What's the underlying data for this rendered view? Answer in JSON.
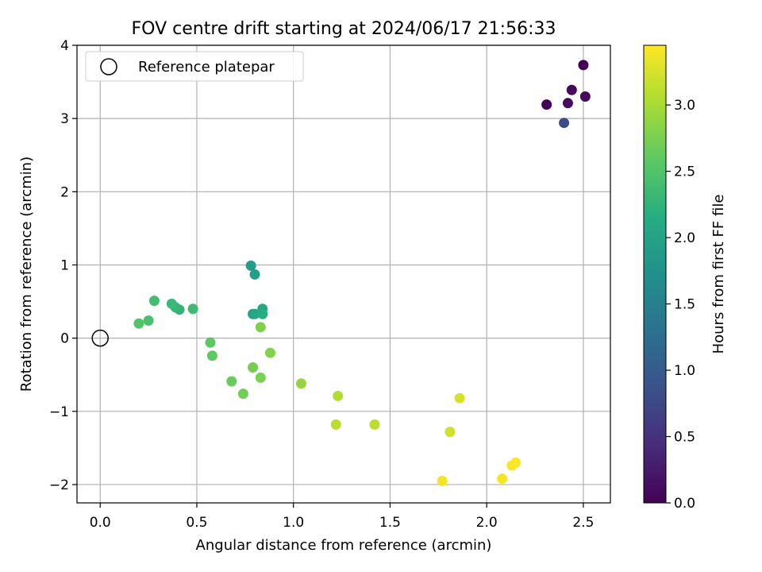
{
  "chart_data": {
    "type": "scatter",
    "title": "FOV centre drift starting at 2024/06/17 21:56:33",
    "xlabel": "Angular distance from reference (arcmin)",
    "ylabel": "Rotation from reference (arcmin)",
    "xlim": [
      -0.12,
      2.64
    ],
    "ylim": [
      -2.25,
      4.0
    ],
    "xticks": [
      "0.0",
      "0.5",
      "1.0",
      "1.5",
      "2.0",
      "2.5"
    ],
    "xtick_values": [
      0,
      0.5,
      1.0,
      1.5,
      2.0,
      2.5
    ],
    "yticks": [
      "−2",
      "−1",
      "0",
      "1",
      "2",
      "3",
      "4"
    ],
    "ytick_values": [
      -2,
      -1,
      0,
      1,
      2,
      3,
      4
    ],
    "grid": true,
    "legend": {
      "position": "top-left",
      "label": "Reference platepar"
    },
    "reference_point": {
      "x": 0.0,
      "y": 0.0
    },
    "colorbar": {
      "label": "Hours from first FF file",
      "colormap": "viridis",
      "range": [
        0.0,
        3.45
      ],
      "ticks": [
        "0.0",
        "0.5",
        "1.0",
        "1.5",
        "2.0",
        "2.5",
        "3.0"
      ],
      "tick_values": [
        0,
        0.5,
        1.0,
        1.5,
        2.0,
        2.5,
        3.0
      ]
    },
    "points": [
      {
        "x": 2.5,
        "y": 3.73,
        "hours": 0.0
      },
      {
        "x": 2.31,
        "y": 3.19,
        "hours": 0.03
      },
      {
        "x": 2.44,
        "y": 3.39,
        "hours": 0.06
      },
      {
        "x": 2.51,
        "y": 3.3,
        "hours": 0.09
      },
      {
        "x": 2.42,
        "y": 3.21,
        "hours": 0.12
      },
      {
        "x": 2.4,
        "y": 2.94,
        "hours": 0.8
      },
      {
        "x": 0.78,
        "y": 0.99,
        "hours": 1.9
      },
      {
        "x": 0.8,
        "y": 0.87,
        "hours": 1.95
      },
      {
        "x": 0.79,
        "y": 0.33,
        "hours": 2.0
      },
      {
        "x": 0.8,
        "y": 0.33,
        "hours": 2.05
      },
      {
        "x": 0.84,
        "y": 0.4,
        "hours": 2.1
      },
      {
        "x": 0.84,
        "y": 0.33,
        "hours": 2.15
      },
      {
        "x": 0.41,
        "y": 0.39,
        "hours": 2.25
      },
      {
        "x": 0.39,
        "y": 0.42,
        "hours": 2.28
      },
      {
        "x": 0.37,
        "y": 0.47,
        "hours": 2.32
      },
      {
        "x": 0.48,
        "y": 0.4,
        "hours": 2.35
      },
      {
        "x": 0.28,
        "y": 0.51,
        "hours": 2.4
      },
      {
        "x": 0.25,
        "y": 0.24,
        "hours": 2.45
      },
      {
        "x": 0.2,
        "y": 0.2,
        "hours": 2.5
      },
      {
        "x": 0.57,
        "y": -0.06,
        "hours": 2.58
      },
      {
        "x": 0.58,
        "y": -0.24,
        "hours": 2.6
      },
      {
        "x": 0.68,
        "y": -0.59,
        "hours": 2.65
      },
      {
        "x": 0.74,
        "y": -0.76,
        "hours": 2.7
      },
      {
        "x": 0.79,
        "y": -0.4,
        "hours": 2.72
      },
      {
        "x": 0.83,
        "y": -0.54,
        "hours": 2.75
      },
      {
        "x": 0.83,
        "y": 0.15,
        "hours": 2.78
      },
      {
        "x": 0.88,
        "y": -0.2,
        "hours": 2.8
      },
      {
        "x": 1.04,
        "y": -0.62,
        "hours": 2.9
      },
      {
        "x": 1.23,
        "y": -0.79,
        "hours": 3.05
      },
      {
        "x": 1.22,
        "y": -1.18,
        "hours": 3.1
      },
      {
        "x": 1.42,
        "y": -1.18,
        "hours": 3.1
      },
      {
        "x": 1.81,
        "y": -1.28,
        "hours": 3.2
      },
      {
        "x": 1.86,
        "y": -0.82,
        "hours": 3.25
      },
      {
        "x": 1.77,
        "y": -1.95,
        "hours": 3.38
      },
      {
        "x": 2.08,
        "y": -1.92,
        "hours": 3.4
      },
      {
        "x": 2.13,
        "y": -1.74,
        "hours": 3.42
      },
      {
        "x": 2.15,
        "y": -1.7,
        "hours": 3.45
      }
    ]
  }
}
